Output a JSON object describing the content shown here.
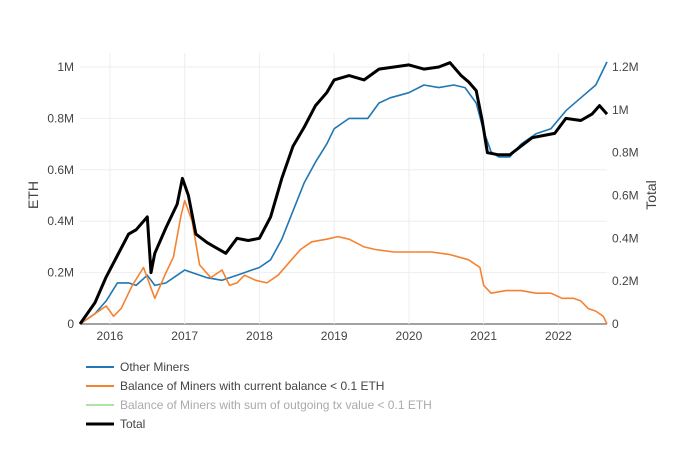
{
  "chart_data": {
    "type": "line",
    "title": "",
    "ylabel_left": "ETH",
    "ylabel_right": "Total",
    "x_ticks": [
      "2016",
      "2017",
      "2018",
      "2019",
      "2020",
      "2021",
      "2022"
    ],
    "y_left_ticks": [
      "0",
      "0.2M",
      "0.4M",
      "0.6M",
      "0.8M",
      "1M"
    ],
    "y_right_ticks": [
      "0",
      "0.2M",
      "0.4M",
      "0.6M",
      "0.8M",
      "1M",
      "1.2M"
    ],
    "xlim": [
      2015.6,
      2022.65
    ],
    "ylim_left": [
      0,
      1000000
    ],
    "ylim_right": [
      0,
      1200000
    ],
    "legend_placement": "bottom-left",
    "series": [
      {
        "name": "Other Miners",
        "axis": "left",
        "color": "#1f77b4",
        "x": [
          2015.6,
          2015.8,
          2015.95,
          2016.1,
          2016.25,
          2016.35,
          2016.5,
          2016.6,
          2016.75,
          2016.9,
          2017.0,
          2017.1,
          2017.3,
          2017.5,
          2017.7,
          2017.9,
          2018.0,
          2018.15,
          2018.3,
          2018.45,
          2018.6,
          2018.75,
          2018.9,
          2019.0,
          2019.2,
          2019.45,
          2019.6,
          2019.75,
          2020.0,
          2020.2,
          2020.4,
          2020.6,
          2020.75,
          2020.9,
          2021.0,
          2021.1,
          2021.2,
          2021.35,
          2021.5,
          2021.7,
          2021.9,
          2022.1,
          2022.3,
          2022.5,
          2022.65
        ],
        "y": [
          0,
          40000,
          90000,
          160000,
          160000,
          150000,
          190000,
          150000,
          160000,
          190000,
          210000,
          200000,
          180000,
          170000,
          190000,
          210000,
          220000,
          250000,
          330000,
          440000,
          550000,
          630000,
          700000,
          760000,
          800000,
          800000,
          860000,
          880000,
          900000,
          930000,
          920000,
          930000,
          920000,
          860000,
          750000,
          670000,
          650000,
          650000,
          700000,
          740000,
          760000,
          830000,
          880000,
          930000,
          1020000
        ]
      },
      {
        "name": "Balance of Miners with current balance <  0.1 ETH",
        "axis": "left",
        "color": "#f58231",
        "x": [
          2015.6,
          2015.8,
          2015.95,
          2016.05,
          2016.15,
          2016.3,
          2016.45,
          2016.6,
          2016.75,
          2016.85,
          2016.95,
          2017.0,
          2017.1,
          2017.2,
          2017.35,
          2017.5,
          2017.6,
          2017.7,
          2017.8,
          2017.95,
          2018.1,
          2018.25,
          2018.4,
          2018.55,
          2018.7,
          2018.9,
          2019.05,
          2019.2,
          2019.4,
          2019.55,
          2019.8,
          2020.0,
          2020.3,
          2020.55,
          2020.8,
          2020.95,
          2021.0,
          2021.1,
          2021.3,
          2021.5,
          2021.7,
          2021.9,
          2022.05,
          2022.2,
          2022.3,
          2022.4,
          2022.5,
          2022.6,
          2022.65
        ],
        "y": [
          0,
          40000,
          70000,
          30000,
          60000,
          150000,
          220000,
          100000,
          200000,
          260000,
          420000,
          480000,
          400000,
          230000,
          180000,
          210000,
          150000,
          160000,
          190000,
          170000,
          160000,
          190000,
          240000,
          290000,
          320000,
          330000,
          340000,
          330000,
          300000,
          290000,
          280000,
          280000,
          280000,
          270000,
          250000,
          220000,
          150000,
          120000,
          130000,
          130000,
          120000,
          120000,
          100000,
          100000,
          90000,
          60000,
          50000,
          30000,
          0
        ]
      },
      {
        "name": "Balance of Miners with sum of outgoing tx value < 0.1 ETH",
        "axis": "left",
        "color": "#98df8a",
        "legendonly": true,
        "x": [],
        "y": []
      },
      {
        "name": "Total",
        "axis": "right",
        "color": "#000000",
        "x": [
          2015.6,
          2015.8,
          2015.95,
          2016.1,
          2016.25,
          2016.35,
          2016.5,
          2016.55,
          2016.6,
          2016.75,
          2016.9,
          2016.97,
          2017.05,
          2017.15,
          2017.3,
          2017.4,
          2017.55,
          2017.7,
          2017.85,
          2018.0,
          2018.15,
          2018.3,
          2018.45,
          2018.6,
          2018.75,
          2018.9,
          2019.0,
          2019.2,
          2019.4,
          2019.6,
          2019.8,
          2020.0,
          2020.2,
          2020.4,
          2020.55,
          2020.7,
          2020.8,
          2020.9,
          2020.98,
          2021.05,
          2021.2,
          2021.35,
          2021.5,
          2021.65,
          2021.8,
          2021.95,
          2022.1,
          2022.3,
          2022.45,
          2022.55,
          2022.65
        ],
        "y": [
          0,
          100000,
          220000,
          320000,
          420000,
          440000,
          500000,
          240000,
          330000,
          450000,
          560000,
          680000,
          600000,
          420000,
          380000,
          360000,
          330000,
          400000,
          390000,
          400000,
          500000,
          680000,
          830000,
          920000,
          1020000,
          1080000,
          1140000,
          1160000,
          1140000,
          1190000,
          1200000,
          1210000,
          1190000,
          1200000,
          1220000,
          1160000,
          1130000,
          1090000,
          950000,
          800000,
          790000,
          790000,
          830000,
          870000,
          880000,
          890000,
          960000,
          950000,
          980000,
          1020000,
          980000
        ]
      }
    ]
  }
}
